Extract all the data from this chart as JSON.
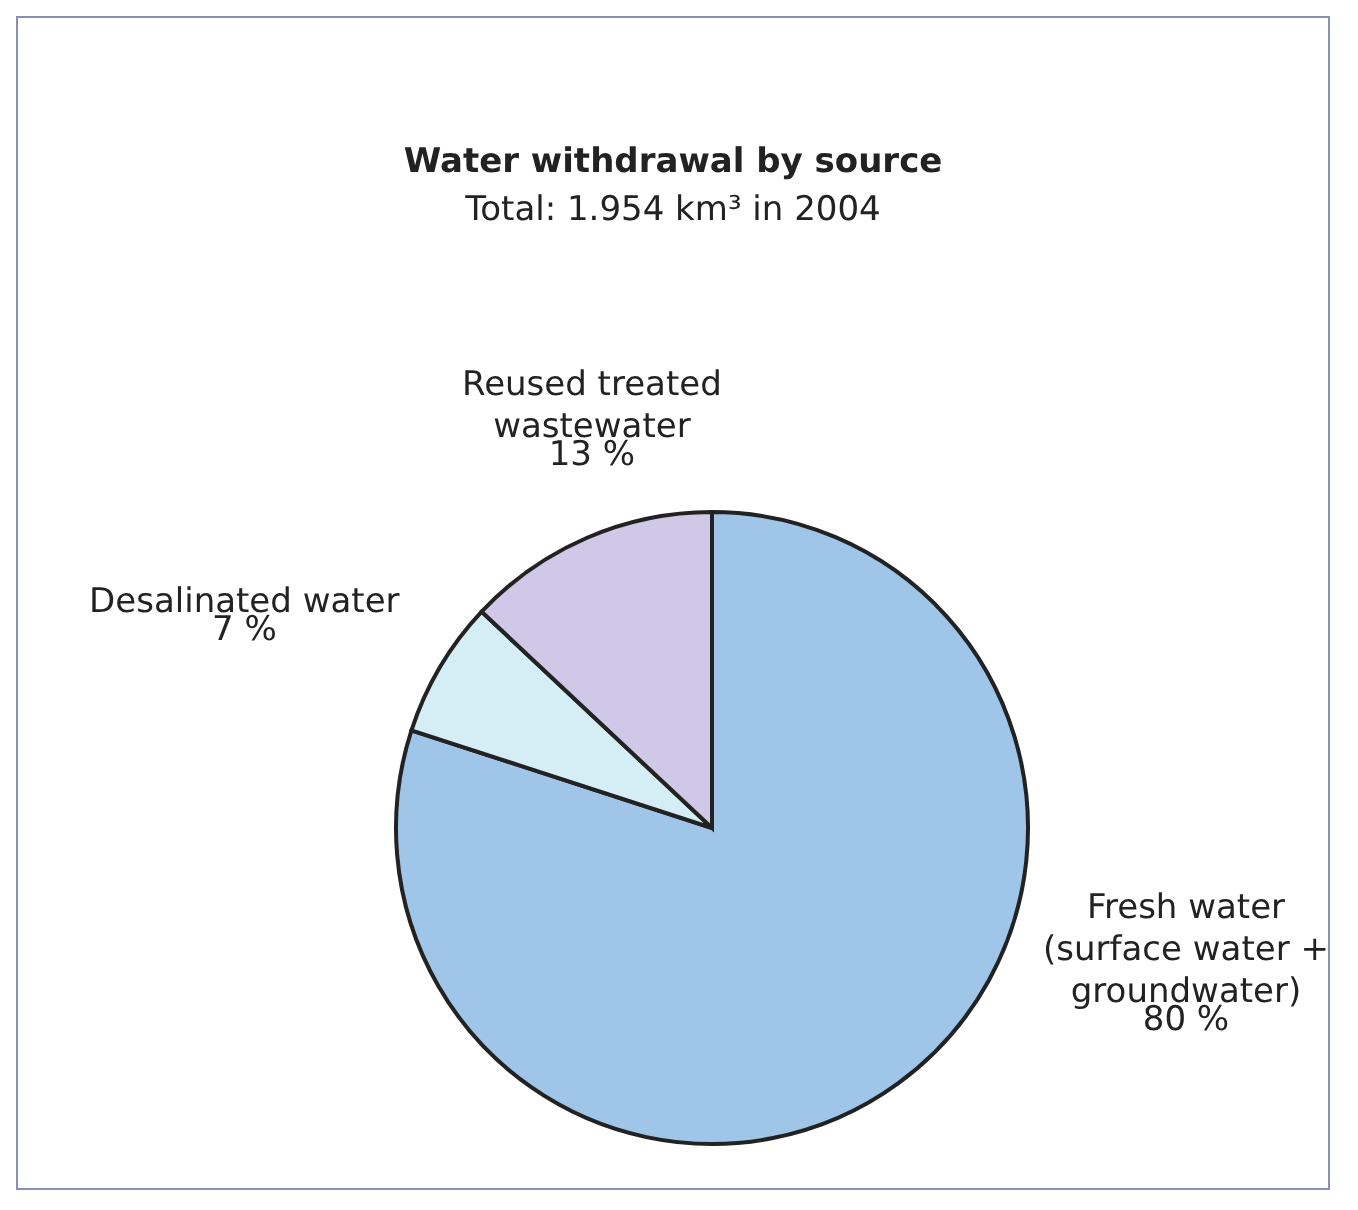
{
  "chart_data": {
    "type": "pie",
    "title": "Water withdrawal by source",
    "subtitle": "Total: 1.954 km³ in 2004",
    "categories": [
      "Fresh water (surface water + groundwater)",
      "Desalinated water",
      "Reused treated wastewater"
    ],
    "values": [
      80,
      7,
      13
    ],
    "colors": [
      "#9fc5e8",
      "#d5edf5",
      "#cfc8e6"
    ],
    "value_labels": [
      "80 %",
      "7 %",
      "13 %"
    ],
    "legend": false
  }
}
